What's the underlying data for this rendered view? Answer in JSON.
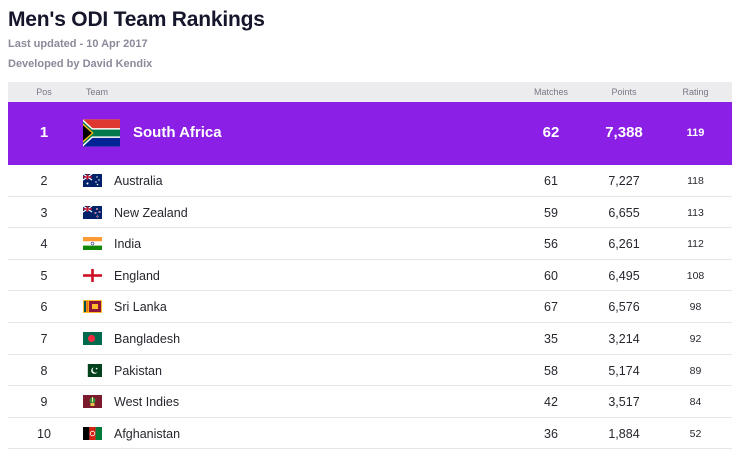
{
  "page": {
    "title": "Men's ODI Team Rankings",
    "last_updated": "Last updated - 10 Apr 2017",
    "developed_by": "Developed by David Kendix"
  },
  "table": {
    "headers": {
      "pos": "Pos",
      "team": "Team",
      "matches": "Matches",
      "points": "Points",
      "rating": "Rating"
    },
    "rows": [
      {
        "pos": "1",
        "team": "South Africa",
        "matches": "62",
        "points": "7,388",
        "rating": "119",
        "flag": "south-africa-flag-icon"
      },
      {
        "pos": "2",
        "team": "Australia",
        "matches": "61",
        "points": "7,227",
        "rating": "118",
        "flag": "australia-flag-icon"
      },
      {
        "pos": "3",
        "team": "New Zealand",
        "matches": "59",
        "points": "6,655",
        "rating": "113",
        "flag": "new-zealand-flag-icon"
      },
      {
        "pos": "4",
        "team": "India",
        "matches": "56",
        "points": "6,261",
        "rating": "112",
        "flag": "india-flag-icon"
      },
      {
        "pos": "5",
        "team": "England",
        "matches": "60",
        "points": "6,495",
        "rating": "108",
        "flag": "england-flag-icon"
      },
      {
        "pos": "6",
        "team": "Sri Lanka",
        "matches": "67",
        "points": "6,576",
        "rating": "98",
        "flag": "sri-lanka-flag-icon"
      },
      {
        "pos": "7",
        "team": "Bangladesh",
        "matches": "35",
        "points": "3,214",
        "rating": "92",
        "flag": "bangladesh-flag-icon"
      },
      {
        "pos": "8",
        "team": "Pakistan",
        "matches": "58",
        "points": "5,174",
        "rating": "89",
        "flag": "pakistan-flag-icon"
      },
      {
        "pos": "9",
        "team": "West Indies",
        "matches": "42",
        "points": "3,517",
        "rating": "84",
        "flag": "west-indies-flag-icon"
      },
      {
        "pos": "10",
        "team": "Afghanistan",
        "matches": "36",
        "points": "1,884",
        "rating": "52",
        "flag": "afghanistan-flag-icon"
      }
    ]
  },
  "colors": {
    "highlight_row": "#8b1fe6",
    "header_bg": "#ececef",
    "title_text": "#15152b"
  }
}
